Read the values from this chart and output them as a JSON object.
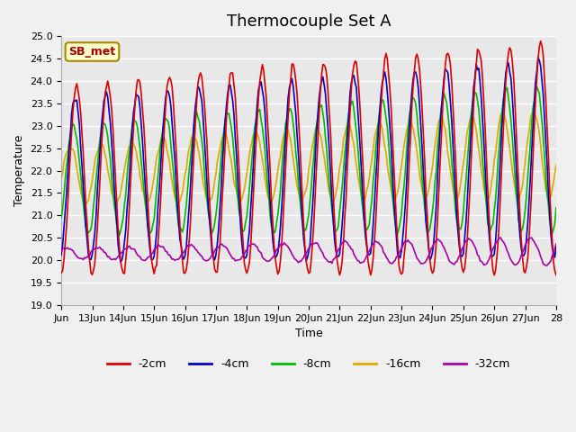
{
  "title": "Thermocouple Set A",
  "xlabel": "Time",
  "ylabel": "Temperature",
  "ylim": [
    19.0,
    25.0
  ],
  "yticks": [
    19.0,
    19.5,
    20.0,
    20.5,
    21.0,
    21.5,
    22.0,
    22.5,
    23.0,
    23.5,
    24.0,
    24.5,
    25.0
  ],
  "xtick_positions": [
    0,
    1,
    2,
    3,
    4,
    5,
    6,
    7,
    8,
    9,
    10,
    11,
    12,
    13,
    14,
    15,
    16
  ],
  "xtick_labels": [
    "Jun",
    "13Jun",
    "14Jun",
    "15Jun",
    "16Jun",
    "17Jun",
    "18Jun",
    "19Jun",
    "20Jun",
    "21Jun",
    "22Jun",
    "23Jun",
    "24Jun",
    "25Jun",
    "26Jun",
    "27Jun",
    "28"
  ],
  "colors": {
    "-2cm": "#dd0000",
    "-4cm": "#0000cc",
    "-8cm": "#00bb00",
    "-16cm": "#ddaa00",
    "-32cm": "#aa00aa"
  },
  "legend_labels": [
    "-2cm",
    "-4cm",
    "-8cm",
    "-16cm",
    "-32cm"
  ],
  "annotation_text": "SB_met",
  "annotation_color": "#aa0000",
  "annotation_bg": "#ffffcc",
  "annotation_border": "#aa8800",
  "fig_bg_color": "#f0f0f0",
  "plot_bg_color": "#e8e8e8",
  "grid_color": "#ffffff",
  "title_fontsize": 13,
  "label_fontsize": 9,
  "tick_fontsize": 8
}
